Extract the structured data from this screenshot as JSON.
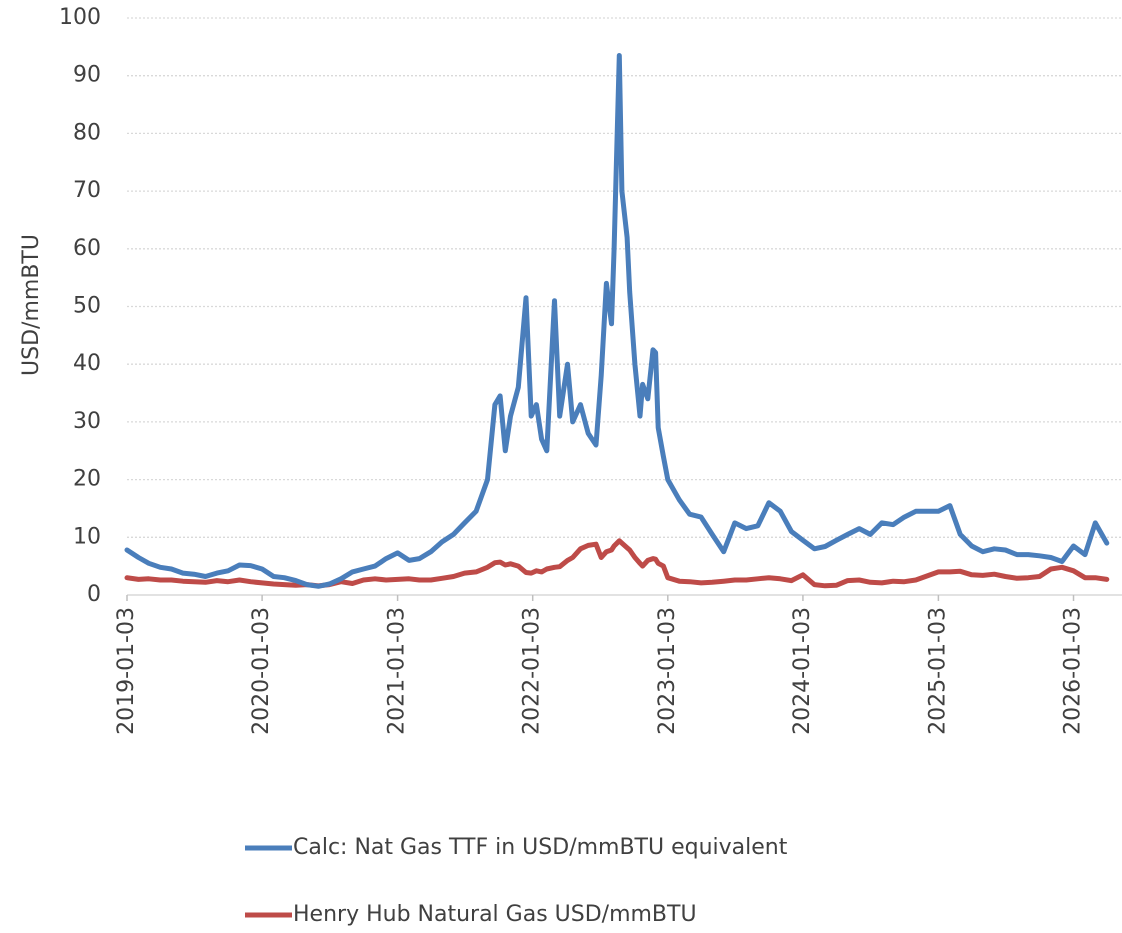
{
  "chart_data": {
    "type": "line",
    "y_label": "USD/mmBTU",
    "x": [
      "2019-01-03",
      "2019-02-03",
      "2019-03-03",
      "2019-04-03",
      "2019-05-03",
      "2019-06-03",
      "2019-07-03",
      "2019-08-03",
      "2019-09-03",
      "2019-10-03",
      "2019-11-03",
      "2019-12-03",
      "2020-01-03",
      "2020-02-03",
      "2020-03-03",
      "2020-04-03",
      "2020-05-03",
      "2020-06-03",
      "2020-07-03",
      "2020-08-03",
      "2020-09-03",
      "2020-10-03",
      "2020-11-03",
      "2020-12-03",
      "2021-01-03",
      "2021-02-03",
      "2021-03-03",
      "2021-04-03",
      "2021-05-03",
      "2021-06-03",
      "2021-07-03",
      "2021-08-03",
      "2021-09-03",
      "2021-09-23",
      "2021-10-07",
      "2021-10-21",
      "2021-11-04",
      "2021-11-25",
      "2021-12-16",
      "2021-12-30",
      "2022-01-13",
      "2022-01-27",
      "2022-02-10",
      "2022-03-03",
      "2022-03-17",
      "2022-04-07",
      "2022-04-21",
      "2022-05-12",
      "2022-06-02",
      "2022-06-23",
      "2022-07-07",
      "2022-07-21",
      "2022-08-04",
      "2022-08-11",
      "2022-08-25",
      "2022-09-01",
      "2022-09-15",
      "2022-09-22",
      "2022-10-06",
      "2022-10-20",
      "2022-10-27",
      "2022-11-10",
      "2022-11-24",
      "2022-12-01",
      "2022-12-08",
      "2022-12-22",
      "2023-01-03",
      "2023-02-03",
      "2023-03-03",
      "2023-04-03",
      "2023-05-03",
      "2023-06-03",
      "2023-07-03",
      "2023-08-03",
      "2023-09-03",
      "2023-10-03",
      "2023-11-03",
      "2023-12-03",
      "2024-01-03",
      "2024-02-03",
      "2024-03-03",
      "2024-04-03",
      "2024-05-03",
      "2024-06-03",
      "2024-07-03",
      "2024-08-03",
      "2024-09-03",
      "2024-10-03",
      "2024-11-03",
      "2024-12-03",
      "2025-01-03",
      "2025-02-03",
      "2025-03-03",
      "2025-04-03",
      "2025-05-03",
      "2025-06-03",
      "2025-07-03",
      "2025-08-03",
      "2025-09-03",
      "2025-10-03",
      "2025-11-03",
      "2025-12-03",
      "2026-01-03",
      "2026-02-03",
      "2026-03-03",
      "2026-04-03"
    ],
    "series": [
      {
        "name": "Calc: Nat Gas TTF in USD/mmBTU equivalent",
        "color": "#4a7ebb",
        "values": [
          7.8,
          6.5,
          5.5,
          4.8,
          4.5,
          3.8,
          3.6,
          3.2,
          3.8,
          4.2,
          5.2,
          5.1,
          4.5,
          3.2,
          3.0,
          2.5,
          1.8,
          1.5,
          1.9,
          2.8,
          4.0,
          4.5,
          5.0,
          6.3,
          7.3,
          6.0,
          6.3,
          7.5,
          9.2,
          10.5,
          12.5,
          14.5,
          20,
          33,
          34.5,
          25,
          31,
          36,
          51.5,
          31,
          33,
          27,
          25,
          51,
          31,
          40,
          30,
          33,
          28,
          26,
          38,
          54,
          47,
          60,
          93.5,
          70,
          62,
          52.5,
          40,
          31,
          36.5,
          34,
          42.5,
          42,
          29,
          24,
          20,
          16.5,
          14,
          13.5,
          10.5,
          7.5,
          12.5,
          11.5,
          12,
          16,
          14.5,
          11,
          9.5,
          8.0,
          8.4,
          9.5,
          10.5,
          11.5,
          10.5,
          12.5,
          12.2,
          13.5,
          14.5,
          14.5,
          14.5,
          15.5,
          10.5,
          8.5,
          7.5,
          8.0,
          7.8,
          7.0,
          7.0,
          6.8,
          6.5,
          5.8,
          8.5,
          7.0,
          12.5,
          9
        ]
      },
      {
        "name": "Henry Hub Natural Gas USD/mmBTU",
        "color": "#be4b48",
        "values": [
          3.0,
          2.7,
          2.8,
          2.6,
          2.6,
          2.4,
          2.3,
          2.2,
          2.5,
          2.3,
          2.6,
          2.3,
          2.1,
          1.9,
          1.8,
          1.7,
          1.8,
          1.6,
          1.8,
          2.3,
          2.0,
          2.6,
          2.8,
          2.6,
          2.7,
          2.8,
          2.6,
          2.6,
          2.9,
          3.2,
          3.8,
          4.0,
          4.8,
          5.6,
          5.7,
          5.2,
          5.4,
          5.0,
          3.9,
          3.8,
          4.2,
          4.0,
          4.5,
          4.8,
          4.9,
          6.0,
          6.5,
          8.0,
          8.6,
          8.8,
          6.5,
          7.5,
          7.8,
          8.5,
          9.4,
          9.0,
          8.2,
          7.8,
          6.5,
          5.5,
          5.0,
          6.0,
          6.3,
          6.2,
          5.5,
          5.0,
          3.0,
          2.4,
          2.3,
          2.1,
          2.2,
          2.4,
          2.6,
          2.6,
          2.8,
          3.0,
          2.8,
          2.5,
          3.5,
          1.8,
          1.6,
          1.7,
          2.5,
          2.6,
          2.2,
          2.1,
          2.4,
          2.3,
          2.6,
          3.3,
          4.0,
          4.0,
          4.1,
          3.5,
          3.4,
          3.6,
          3.2,
          2.9,
          3.0,
          3.2,
          4.5,
          4.8,
          4.2,
          3.0,
          3.0,
          2.7
        ]
      }
    ],
    "xlim": [
      "2019-01-03",
      "2026-05-14"
    ],
    "xticks": [
      "2019-01-03",
      "2020-01-03",
      "2021-01-03",
      "2022-01-03",
      "2023-01-03",
      "2024-01-03",
      "2025-01-03",
      "2026-01-03"
    ],
    "ylim": [
      0,
      100
    ],
    "yticks": [
      0,
      10,
      20,
      30,
      40,
      50,
      60,
      70,
      80,
      90,
      100
    ],
    "grid": true,
    "legend": "bottom"
  }
}
